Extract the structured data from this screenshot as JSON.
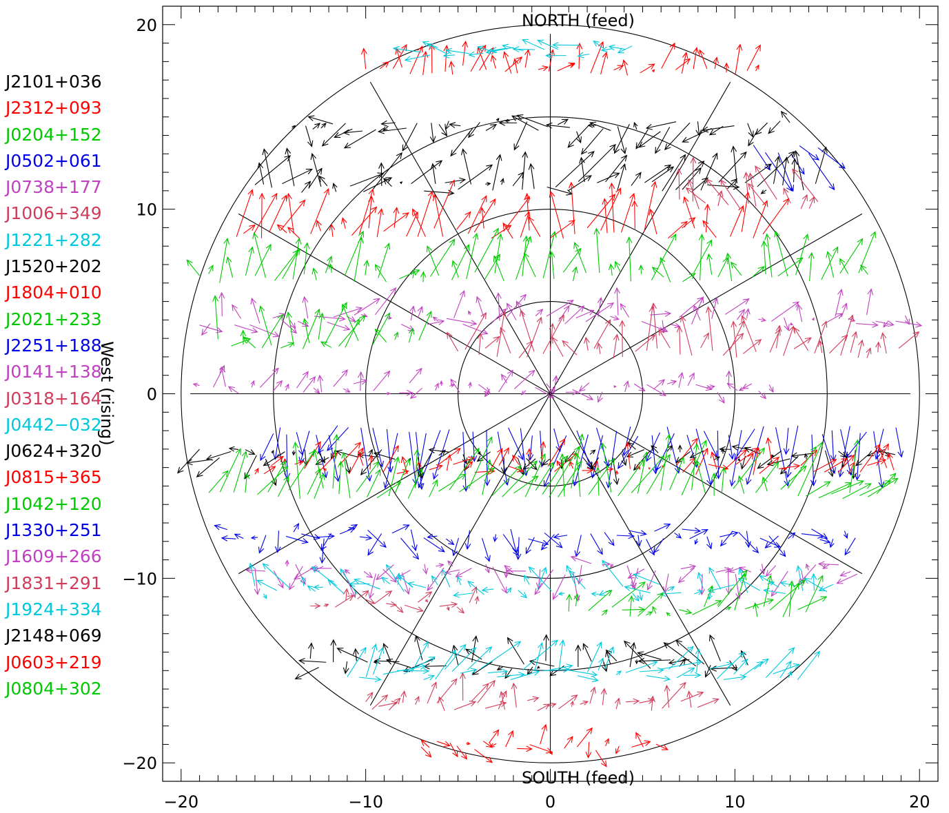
{
  "chart_data": {
    "type": "scatter",
    "subtype": "vector-field on polar grid",
    "title": "",
    "xlabel": "",
    "ylabel": "West (rising)",
    "north_label": "NORTH (feed)",
    "south_label": "SOUTH (feed)",
    "xlim": [
      -21,
      21
    ],
    "ylim": [
      -21,
      21
    ],
    "x_ticks": [
      -20,
      -10,
      0,
      10,
      20
    ],
    "y_ticks": [
      -20,
      -10,
      0,
      10,
      20
    ],
    "x_tick_labels": [
      "−20",
      "−10",
      "0",
      "10",
      "20"
    ],
    "y_tick_labels": [
      "−20",
      "−10",
      "0",
      "10",
      "20"
    ],
    "minor_tick_step": 1,
    "grid_circles": [
      5,
      10,
      15,
      20
    ],
    "grid_spokes_deg": [
      0,
      30,
      60,
      90,
      120,
      150
    ],
    "spoke_radius": 19.5,
    "legend_placement": "left, outside plot",
    "sources": [
      {
        "name": "J2101+036",
        "color": "#000000"
      },
      {
        "name": "J2312+093",
        "color": "#ff0000"
      },
      {
        "name": "J0204+152",
        "color": "#00c800"
      },
      {
        "name": "J0502+061",
        "color": "#0000e6"
      },
      {
        "name": "J0738+177",
        "color": "#c040c0"
      },
      {
        "name": "J1006+349",
        "color": "#d03c5a"
      },
      {
        "name": "J1221+282",
        "color": "#00c8dc"
      },
      {
        "name": "J1520+202",
        "color": "#000000"
      },
      {
        "name": "J1804+010",
        "color": "#ff0000"
      },
      {
        "name": "J2021+233",
        "color": "#00c800"
      },
      {
        "name": "J2251+188",
        "color": "#0000e6"
      },
      {
        "name": "J0141+138",
        "color": "#c040c0"
      },
      {
        "name": "J0318+164",
        "color": "#d03c5a"
      },
      {
        "name": "J0442−032",
        "color": "#00c8dc"
      },
      {
        "name": "J0624+320",
        "color": "#000000"
      },
      {
        "name": "J0815+365",
        "color": "#ff0000"
      },
      {
        "name": "J1042+120",
        "color": "#00c800"
      },
      {
        "name": "J1330+251",
        "color": "#0000e6"
      },
      {
        "name": "J1609+266",
        "color": "#c040c0"
      },
      {
        "name": "J1831+291",
        "color": "#d03c5a"
      },
      {
        "name": "J1924+334",
        "color": "#00c8dc"
      },
      {
        "name": "J2148+069",
        "color": "#000000"
      },
      {
        "name": "J0603+219",
        "color": "#ff0000"
      },
      {
        "name": "J0804+302",
        "color": "#00c800"
      }
    ],
    "tracks": [
      {
        "source": "J2312+093",
        "y": 17.5,
        "x_range": [
          -10,
          11.5
        ],
        "mean_dx": 0.2,
        "mean_dy": 0.9,
        "spread": 0.8
      },
      {
        "source": "J1221+282",
        "y": 18.6,
        "x_range": [
          -7,
          5
        ],
        "mean_dx": -1.0,
        "mean_dy": 0.1,
        "spread": 0.5
      },
      {
        "source": "J2101+036",
        "y": 14.5,
        "x_range": [
          -14,
          13
        ],
        "mean_dx": -0.6,
        "mean_dy": -0.4,
        "spread": 1.2
      },
      {
        "source": "J0502+061",
        "y": 13.2,
        "x_range": [
          11,
          15
        ],
        "mean_dx": 1.5,
        "mean_dy": -1.5,
        "spread": 0.8
      },
      {
        "source": "J1520+202",
        "y": 11.2,
        "x_range": [
          -16,
          15
        ],
        "mean_dx": 0.8,
        "mean_dy": 0.9,
        "spread": 1.3
      },
      {
        "source": "J1006+349",
        "y": 10.3,
        "x_range": [
          7,
          14.5
        ],
        "mean_dx": -0.5,
        "mean_dy": 1.6,
        "spread": 1.0
      },
      {
        "source": "J1804+010",
        "y": 8.7,
        "x_range": [
          -17,
          12
        ],
        "mean_dx": 0.4,
        "mean_dy": 1.6,
        "spread": 1.2
      },
      {
        "source": "J0204+152",
        "y": 6.3,
        "x_range": [
          -19,
          17.5
        ],
        "mean_dx": 0.3,
        "mean_dy": 1.5,
        "spread": 1.1
      },
      {
        "source": "J0738+177",
        "y": 4.0,
        "x_range": [
          -19,
          19.5
        ],
        "mean_dx": 0.6,
        "mean_dy": 0.4,
        "spread": 1.1
      },
      {
        "source": "J2021+233",
        "y": 2.7,
        "x_range": [
          -18,
          -7
        ],
        "mean_dx": 0.3,
        "mean_dy": 1.2,
        "spread": 1.2
      },
      {
        "source": "J0318+164",
        "y": 2.2,
        "x_range": [
          -5,
          19
        ],
        "mean_dx": 0.2,
        "mean_dy": 1.5,
        "spread": 1.0
      },
      {
        "source": "J0141+138",
        "y": 0.3,
        "x_range": [
          -19,
          12
        ],
        "mean_dx": 0.2,
        "mean_dy": 0.3,
        "spread": 0.9
      },
      {
        "source": "J2251+188",
        "y": -2.0,
        "x_range": [
          -15,
          19
        ],
        "mean_dx": -0.2,
        "mean_dy": -2.2,
        "spread": 1.0
      },
      {
        "source": "J0624+320",
        "y": -3.3,
        "x_range": [
          -19,
          19
        ],
        "mean_dx": -0.4,
        "mean_dy": -0.6,
        "spread": 1.0
      },
      {
        "source": "J0815+365",
        "y": -4.1,
        "x_range": [
          -16,
          19
        ],
        "mean_dx": 0.4,
        "mean_dy": 0.6,
        "spread": 0.9
      },
      {
        "source": "J1042+120",
        "y": -5.4,
        "x_range": [
          -18.5,
          18
        ],
        "mean_dx": 0.7,
        "mean_dy": 1.9,
        "spread": 1.2
      },
      {
        "source": "J1330+251",
        "y": -7.6,
        "x_range": [
          -17.5,
          17
        ],
        "mean_dx": 0.2,
        "mean_dy": -0.5,
        "spread": 1.0
      },
      {
        "source": "J1609+266",
        "y": -9.5,
        "x_range": [
          -16,
          17
        ],
        "mean_dx": -0.2,
        "mean_dy": -0.6,
        "spread": 1.0
      },
      {
        "source": "J1924+334",
        "y": -10.6,
        "x_range": [
          -16,
          15.5
        ],
        "mean_dx": -0.5,
        "mean_dy": 0.5,
        "spread": 1.0
      },
      {
        "source": "J1831+291",
        "y": -11.3,
        "x_range": [
          -13,
          -4
        ],
        "mean_dx": 0.5,
        "mean_dy": 0.3,
        "spread": 0.7
      },
      {
        "source": "J0804+302",
        "y": -11.8,
        "x_range": [
          1,
          14
        ],
        "mean_dx": 0.9,
        "mean_dy": 0.9,
        "spread": 1.1
      },
      {
        "source": "J2148+069",
        "y": -14.6,
        "x_range": [
          -13,
          11
        ],
        "mean_dx": -0.7,
        "mean_dy": 0.4,
        "spread": 1.1
      },
      {
        "source": "J1221+282",
        "y": -15.2,
        "x_range": [
          -11,
          14
        ],
        "mean_dx": 1.2,
        "mean_dy": 0.8,
        "spread": 1.1
      },
      {
        "source": "J1006+349",
        "y": -16.9,
        "x_range": [
          -10,
          8
        ],
        "mean_dx": 0.5,
        "mean_dy": 0.8,
        "spread": 0.8
      },
      {
        "source": "J0603+219",
        "y": -19.1,
        "x_range": [
          -7,
          6
        ],
        "mean_dx": 0.3,
        "mean_dy": 0.1,
        "spread": 1.0
      }
    ]
  }
}
